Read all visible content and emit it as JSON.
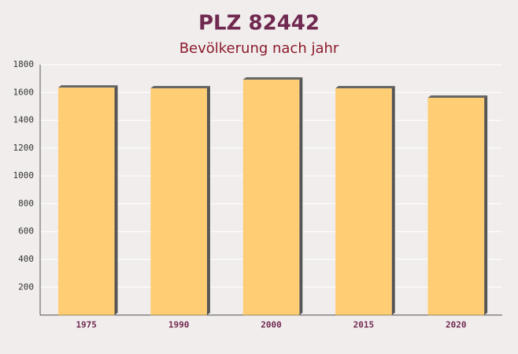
{
  "chart_data": {
    "type": "bar",
    "title": "PLZ 82442",
    "subtitle": "Bevölkerung nach jahr",
    "categories": [
      "1975",
      "1990",
      "2000",
      "2015",
      "2020"
    ],
    "values": [
      1635,
      1630,
      1692,
      1630,
      1562
    ],
    "color": "#ffc966",
    "ylim": [
      0,
      1800
    ],
    "yticks": [
      200,
      400,
      600,
      800,
      1000,
      1200,
      1400,
      1600,
      1800
    ],
    "grid": true
  }
}
